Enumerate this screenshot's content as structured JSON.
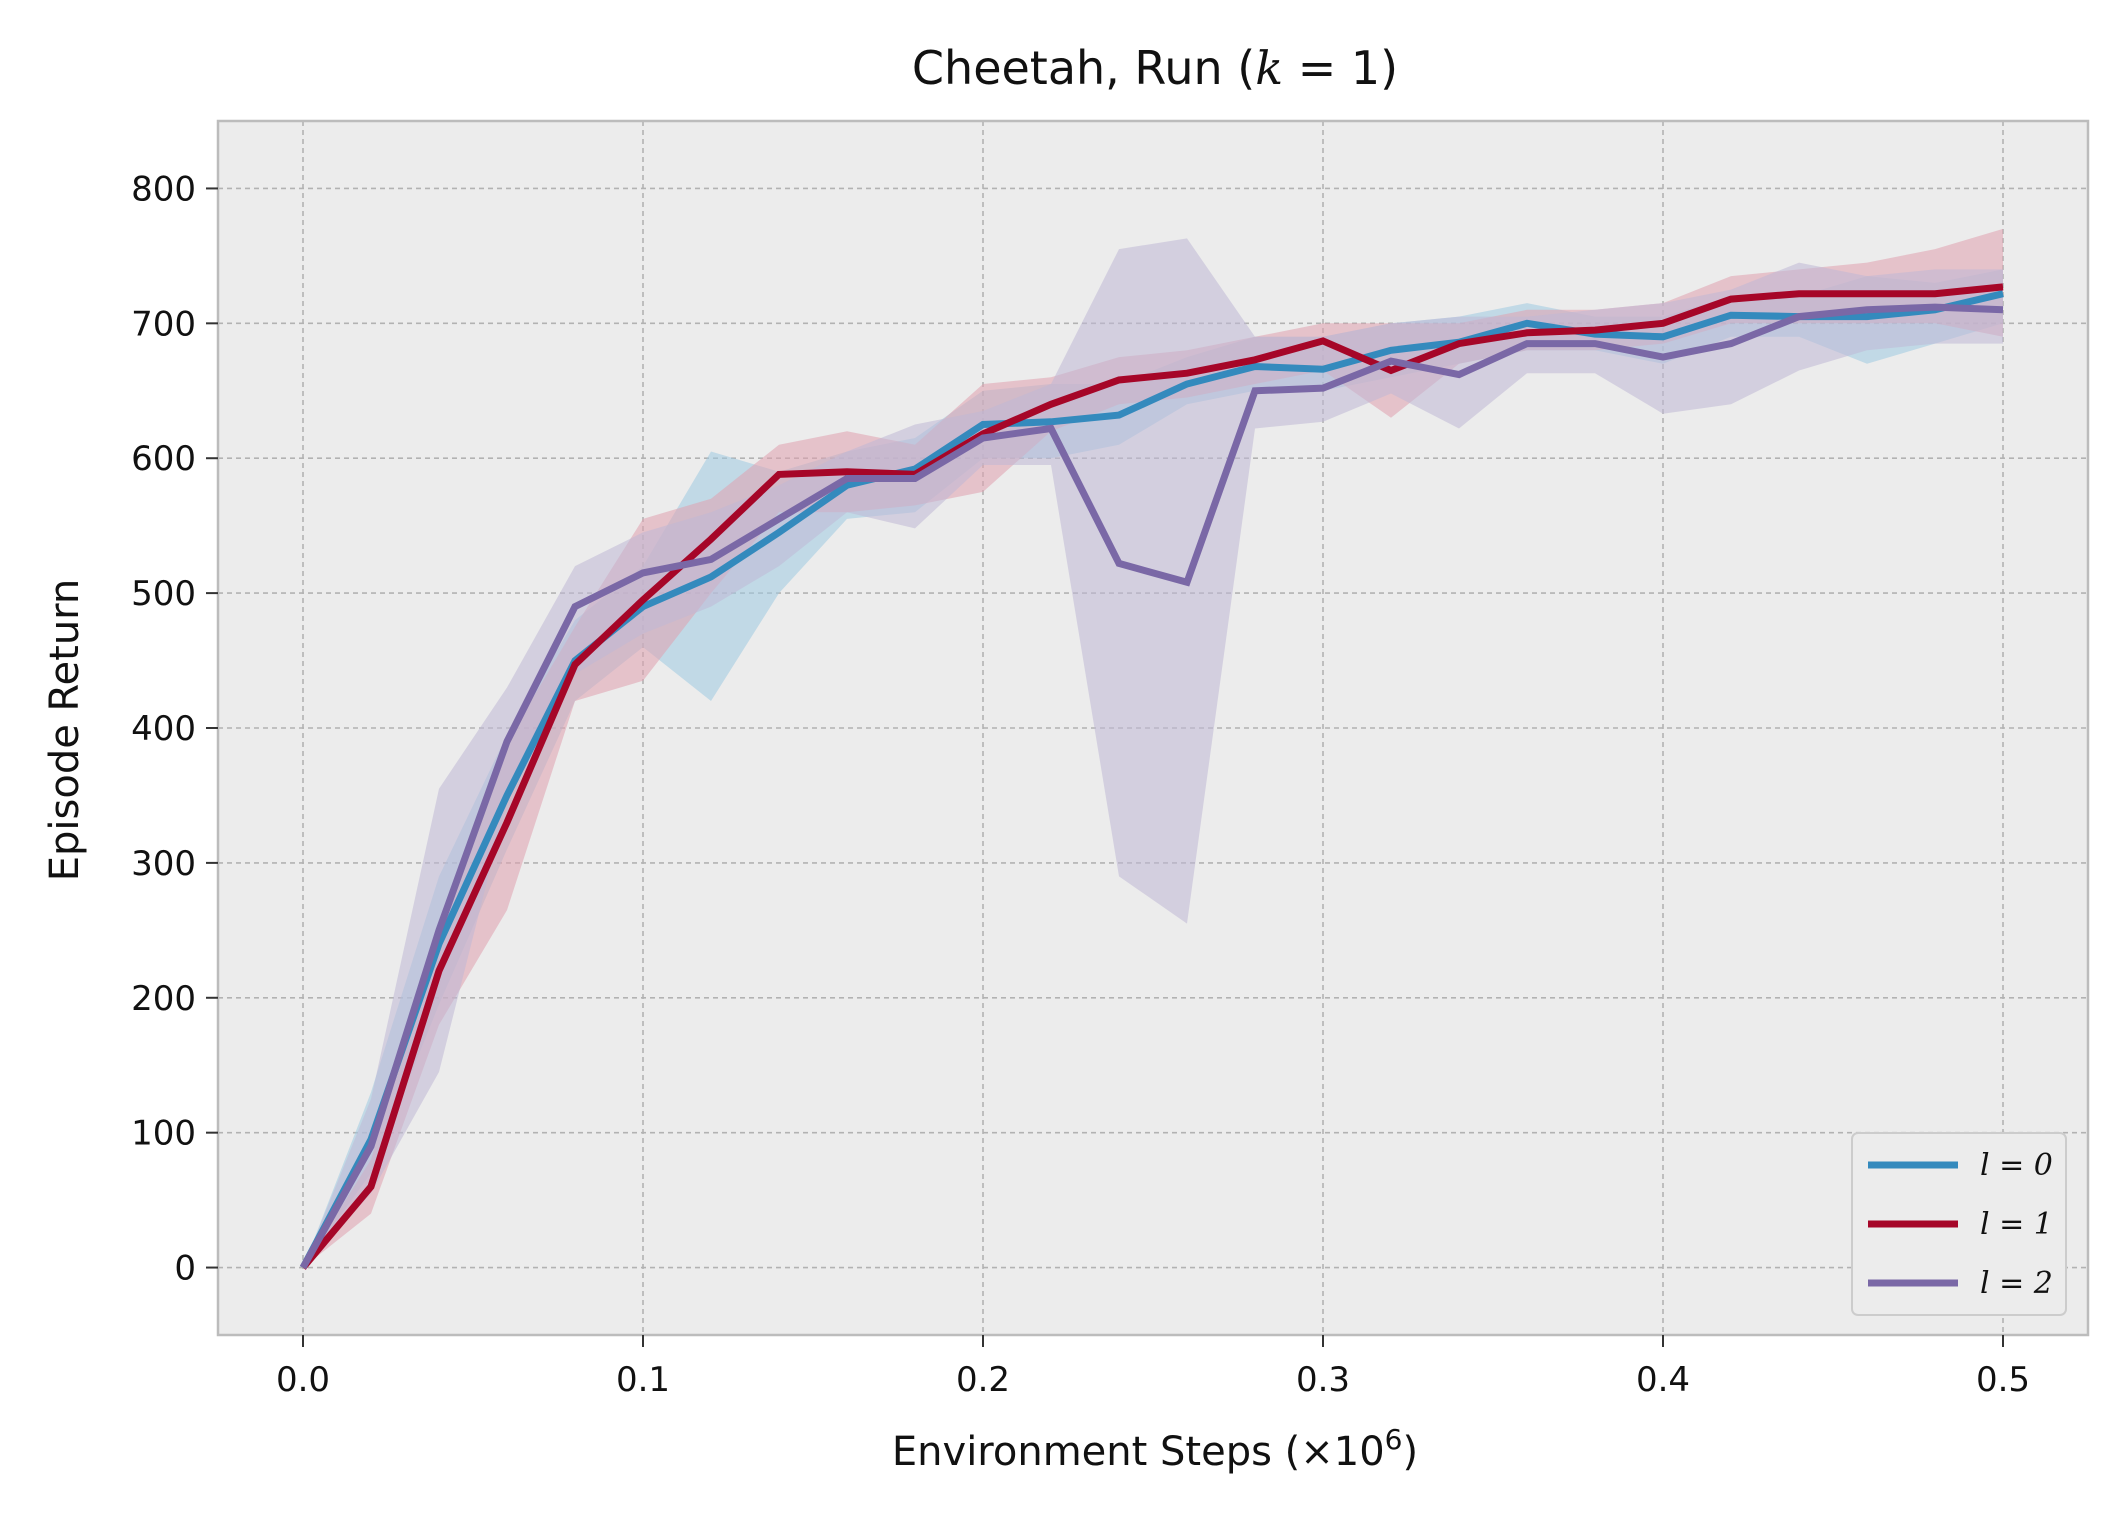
{
  "chart_data": {
    "type": "line",
    "title": "Cheetah, Run (k = 1)",
    "xlabel": "Environment Steps (×10⁶)",
    "ylabel": "Episode Return",
    "xlim": [
      -0.025,
      0.525
    ],
    "ylim": [
      -50,
      850
    ],
    "xticks": [
      "0.0",
      "0.1",
      "0.2",
      "0.3",
      "0.4",
      "0.5"
    ],
    "yticks": [
      "0",
      "100",
      "200",
      "300",
      "400",
      "500",
      "600",
      "700",
      "800"
    ],
    "grid": true,
    "legend_position": "lower-right",
    "x": [
      0.0,
      0.02,
      0.04,
      0.06,
      0.08,
      0.1,
      0.12,
      0.14,
      0.16,
      0.18,
      0.2,
      0.22,
      0.24,
      0.26,
      0.28,
      0.3,
      0.32,
      0.34,
      0.36,
      0.38,
      0.4,
      0.42,
      0.44,
      0.46,
      0.48,
      0.5
    ],
    "series": [
      {
        "name": "l = 0",
        "color": "#348ABD",
        "band_color": "#9ECAE1",
        "values": [
          0,
          95,
          240,
          350,
          450,
          490,
          512,
          545,
          580,
          592,
          625,
          627,
          632,
          655,
          668,
          666,
          680,
          686,
          700,
          692,
          690,
          706,
          705,
          705,
          710,
          722
        ],
        "lower": [
          0,
          70,
          195,
          310,
          420,
          460,
          420,
          500,
          555,
          560,
          600,
          600,
          610,
          640,
          650,
          650,
          660,
          670,
          680,
          680,
          670,
          690,
          690,
          670,
          685,
          700
        ],
        "upper": [
          0,
          130,
          290,
          395,
          480,
          520,
          605,
          590,
          605,
          615,
          650,
          655,
          655,
          675,
          690,
          690,
          700,
          705,
          715,
          705,
          705,
          720,
          720,
          735,
          730,
          740
        ]
      },
      {
        "name": "l = 1",
        "color": "#A60628",
        "band_color": "#E0A0AE",
        "values": [
          0,
          60,
          220,
          330,
          447,
          495,
          540,
          588,
          590,
          588,
          618,
          640,
          658,
          663,
          673,
          687,
          665,
          685,
          693,
          695,
          700,
          718,
          722,
          722,
          722,
          727
        ],
        "lower": [
          0,
          40,
          180,
          265,
          420,
          435,
          500,
          560,
          560,
          565,
          575,
          620,
          640,
          645,
          655,
          665,
          630,
          670,
          680,
          680,
          685,
          700,
          700,
          700,
          700,
          690
        ],
        "upper": [
          0,
          80,
          255,
          390,
          475,
          555,
          570,
          610,
          620,
          610,
          655,
          660,
          675,
          680,
          690,
          700,
          700,
          700,
          710,
          710,
          715,
          735,
          740,
          745,
          755,
          770
        ]
      },
      {
        "name": "l = 2",
        "color": "#7A68A6",
        "band_color": "#C0B8D6",
        "values": [
          0,
          90,
          250,
          390,
          490,
          515,
          525,
          555,
          585,
          585,
          615,
          622,
          522,
          508,
          650,
          652,
          672,
          662,
          685,
          685,
          675,
          685,
          705,
          710,
          712,
          710
        ],
        "lower": [
          0,
          55,
          145,
          345,
          440,
          470,
          490,
          520,
          560,
          548,
          595,
          595,
          290,
          255,
          622,
          627,
          648,
          622,
          663,
          663,
          633,
          640,
          665,
          680,
          685,
          685
        ],
        "upper": [
          0,
          125,
          355,
          430,
          520,
          545,
          560,
          580,
          605,
          625,
          635,
          655,
          755,
          763,
          690,
          690,
          700,
          705,
          705,
          710,
          715,
          725,
          745,
          735,
          740,
          740
        ]
      }
    ]
  }
}
